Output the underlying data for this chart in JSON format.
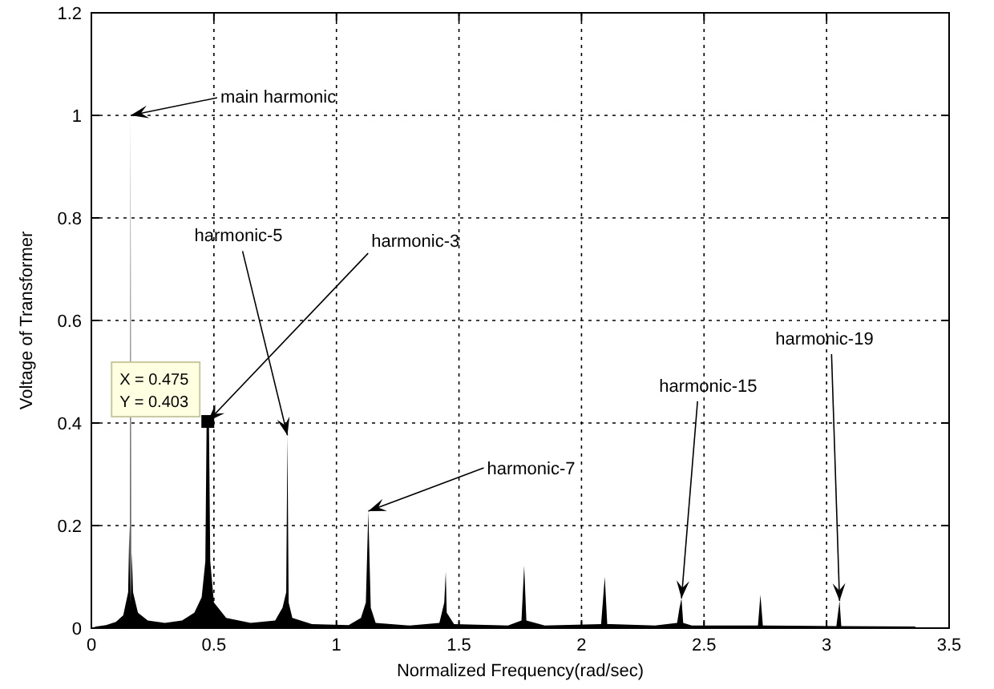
{
  "chart_data": {
    "type": "area",
    "xlabel": "Normalized Frequency(rad/sec)",
    "ylabel": "Voltage of Transformer",
    "xlim": [
      0,
      3.5
    ],
    "xticks": [
      0,
      0.5,
      1,
      1.5,
      2,
      2.5,
      3,
      3.5
    ],
    "ylim": [
      0,
      1.2
    ],
    "yticks": [
      0,
      0.2,
      0.4,
      0.6,
      0.8,
      1,
      1.2
    ],
    "grid": true,
    "series": [
      {
        "color": "#000000",
        "x": [
          0,
          0.02,
          0.06,
          0.1,
          0.13,
          0.15,
          0.155,
          0.158,
          0.16,
          0.162,
          0.165,
          0.17,
          0.19,
          0.23,
          0.3,
          0.37,
          0.42,
          0.45,
          0.465,
          0.47,
          0.475,
          0.48,
          0.485,
          0.5,
          0.55,
          0.65,
          0.75,
          0.78,
          0.795,
          0.8,
          0.805,
          0.82,
          0.9,
          1.05,
          1.1,
          1.12,
          1.13,
          1.14,
          1.16,
          1.3,
          1.42,
          1.44,
          1.446,
          1.45,
          1.48,
          1.7,
          1.755,
          1.766,
          1.775,
          1.85,
          2.08,
          2.095,
          2.105,
          2.3,
          2.39,
          2.4,
          2.408,
          2.415,
          2.45,
          2.72,
          2.73,
          2.74,
          3.04,
          3.053,
          3.06,
          3.36,
          3.37
        ],
        "values": [
          0,
          0.003,
          0.006,
          0.012,
          0.025,
          0.07,
          0.2,
          0.05,
          1.0,
          0.05,
          0.148,
          0.07,
          0.03,
          0.015,
          0.01,
          0.015,
          0.03,
          0.06,
          0.13,
          0.39,
          0.403,
          0.39,
          0.13,
          0.05,
          0.02,
          0.01,
          0.015,
          0.04,
          0.07,
          0.376,
          0.05,
          0.02,
          0.008,
          0.006,
          0.02,
          0.05,
          0.228,
          0.04,
          0.01,
          0.005,
          0.01,
          0.05,
          0.11,
          0.03,
          0.008,
          0.005,
          0.015,
          0.122,
          0.015,
          0.005,
          0.008,
          0.1,
          0.008,
          0.005,
          0.01,
          0.04,
          0.058,
          0.01,
          0.005,
          0.005,
          0.065,
          0.005,
          0.004,
          0.053,
          0.004,
          0.003,
          0
        ]
      }
    ],
    "annotations": [
      {
        "text": "main harmonic",
        "x": 0.16,
        "y": 1.0
      },
      {
        "text": "harmonic-5",
        "x": 0.8,
        "y": 0.376
      },
      {
        "text": "harmonic-3",
        "x": 0.475,
        "y": 0.403
      },
      {
        "text": "harmonic-7",
        "x": 1.13,
        "y": 0.228
      },
      {
        "text": "harmonic-15",
        "x": 2.408,
        "y": 0.058
      },
      {
        "text": "harmonic-19",
        "x": 3.053,
        "y": 0.053
      },
      {
        "text": "X = 0.475\nY = 0.403",
        "x": 0.475,
        "y": 0.403
      }
    ]
  }
}
